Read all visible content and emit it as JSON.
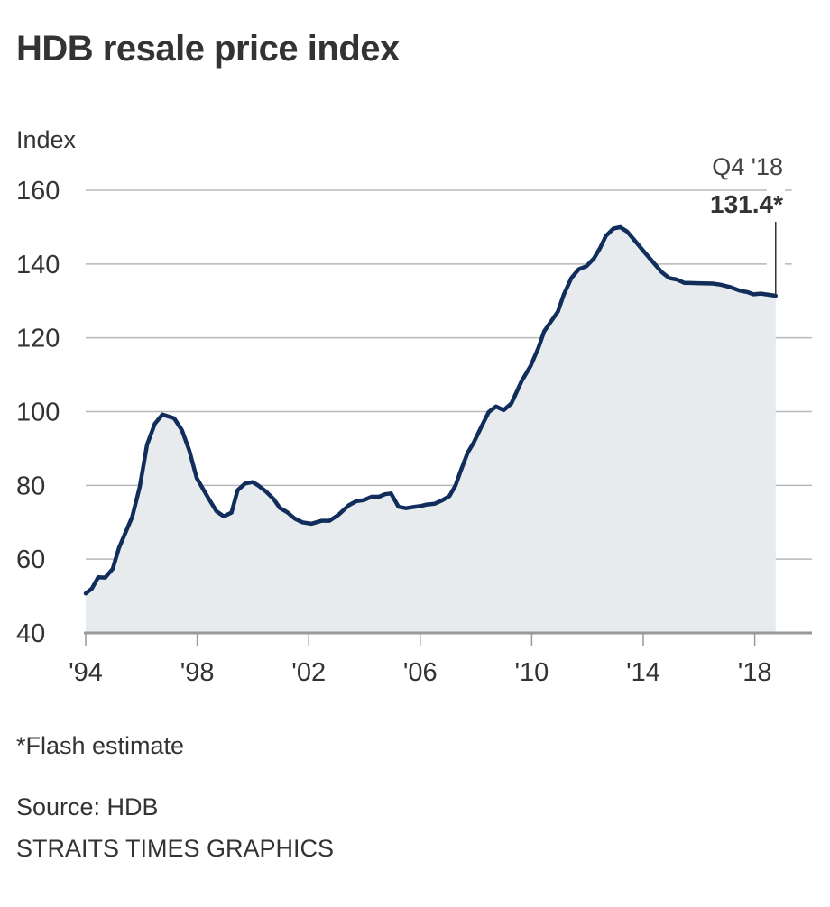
{
  "chart_data": {
    "type": "area",
    "title": "HDB resale price index",
    "xlabel": "",
    "ylabel": "Index",
    "ylim": [
      40,
      160
    ],
    "xlim": [
      1994,
      2020.0
    ],
    "grid": true,
    "yticks": [
      40,
      60,
      80,
      100,
      120,
      140,
      160
    ],
    "xticks": [
      {
        "value": 1994,
        "label": "'94"
      },
      {
        "value": 1998,
        "label": "'98"
      },
      {
        "value": 2002,
        "label": "'02"
      },
      {
        "value": 2006,
        "label": "'06"
      },
      {
        "value": 2010,
        "label": "'10"
      },
      {
        "value": 2014,
        "label": "'14"
      },
      {
        "value": 2018,
        "label": "'18"
      }
    ],
    "series": [
      {
        "name": "HDB resale price index",
        "color": "#102d5c",
        "fill": "#e8ebed",
        "x": [
          1994.0,
          1994.22,
          1994.45,
          1994.7,
          1994.97,
          1995.19,
          1995.39,
          1995.67,
          1995.94,
          1996.2,
          1996.48,
          1996.75,
          1997.17,
          1997.45,
          1997.72,
          1997.98,
          1998.42,
          1998.69,
          1998.95,
          1999.23,
          1999.45,
          1999.72,
          1999.99,
          2000.2,
          2000.47,
          2000.74,
          2000.96,
          2001.23,
          2001.5,
          2001.77,
          2002.09,
          2002.47,
          2002.74,
          2003.06,
          2003.44,
          2003.71,
          2003.98,
          2004.25,
          2004.52,
          2004.73,
          2004.95,
          2005.22,
          2005.49,
          2005.81,
          2006.03,
          2006.24,
          2006.51,
          2006.78,
          2007.05,
          2007.27,
          2007.43,
          2007.7,
          2007.92,
          2008.18,
          2008.46,
          2008.72,
          2008.99,
          2009.27,
          2009.64,
          2009.96,
          2010.24,
          2010.45,
          2010.67,
          2010.94,
          2011.15,
          2011.42,
          2011.69,
          2011.96,
          2012.23,
          2012.45,
          2012.66,
          2012.93,
          2013.17,
          2013.42,
          2013.69,
          2014.01,
          2014.33,
          2014.66,
          2014.93,
          2015.2,
          2015.47,
          2015.95,
          2016.49,
          2016.76,
          2017.14,
          2017.46,
          2017.73,
          2017.95,
          2018.22,
          2018.75
        ],
        "y": [
          50.7,
          52.0,
          55.1,
          55.0,
          57.4,
          63.0,
          66.6,
          71.5,
          79.6,
          91.0,
          96.7,
          99.2,
          98.2,
          95.0,
          89.4,
          82.0,
          76.3,
          73.0,
          71.6,
          72.6,
          78.7,
          80.5,
          80.9,
          79.9,
          78.3,
          76.3,
          73.9,
          72.7,
          71.0,
          70.0,
          69.6,
          70.4,
          70.4,
          72.0,
          74.6,
          75.7,
          76.0,
          76.9,
          76.9,
          77.6,
          77.8,
          74.2,
          73.8,
          74.2,
          74.4,
          74.8,
          75.0,
          75.9,
          77.1,
          80.0,
          83.5,
          88.8,
          91.6,
          95.7,
          99.9,
          101.4,
          100.4,
          102.2,
          108.3,
          112.4,
          117.3,
          121.8,
          124.2,
          127.1,
          131.7,
          136.2,
          138.6,
          139.4,
          141.5,
          144.3,
          147.6,
          149.6,
          150.0,
          148.8,
          146.4,
          143.5,
          140.7,
          137.8,
          136.2,
          135.8,
          134.9,
          134.8,
          134.7,
          134.4,
          133.7,
          132.8,
          132.4,
          131.8,
          132.0,
          131.4
        ]
      }
    ],
    "annotations": [
      {
        "label": "Q4 '18",
        "value": "131.4*",
        "x": 2018.75,
        "y": 131.4
      }
    ]
  },
  "header": {
    "title": "HDB resale price index",
    "y_axis_label": "Index"
  },
  "footer": {
    "footnote": "*Flash estimate",
    "source": "Source: HDB",
    "credit": "STRAITS TIMES GRAPHICS"
  }
}
